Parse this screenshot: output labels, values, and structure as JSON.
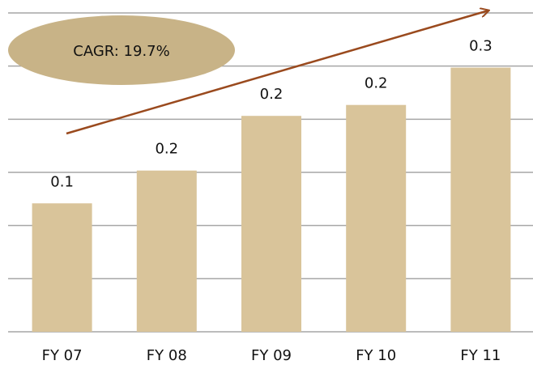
{
  "chart_data": {
    "type": "bar",
    "annotation": "CAGR: 19.7%",
    "categories": [
      "FY 07",
      "FY 08",
      "FY 09",
      "FY 10",
      "FY 11"
    ],
    "values": [
      0.141,
      0.177,
      0.237,
      0.249,
      0.29
    ],
    "value_labels": [
      "0.1",
      "0.2",
      "0.2",
      "0.2",
      "0.3"
    ],
    "color": "#d9c49a",
    "ylim": [
      0,
      0.35
    ],
    "yticks": [
      0,
      0.0583,
      0.1167,
      0.175,
      0.2333,
      0.2917,
      0.35
    ],
    "grid": true
  }
}
